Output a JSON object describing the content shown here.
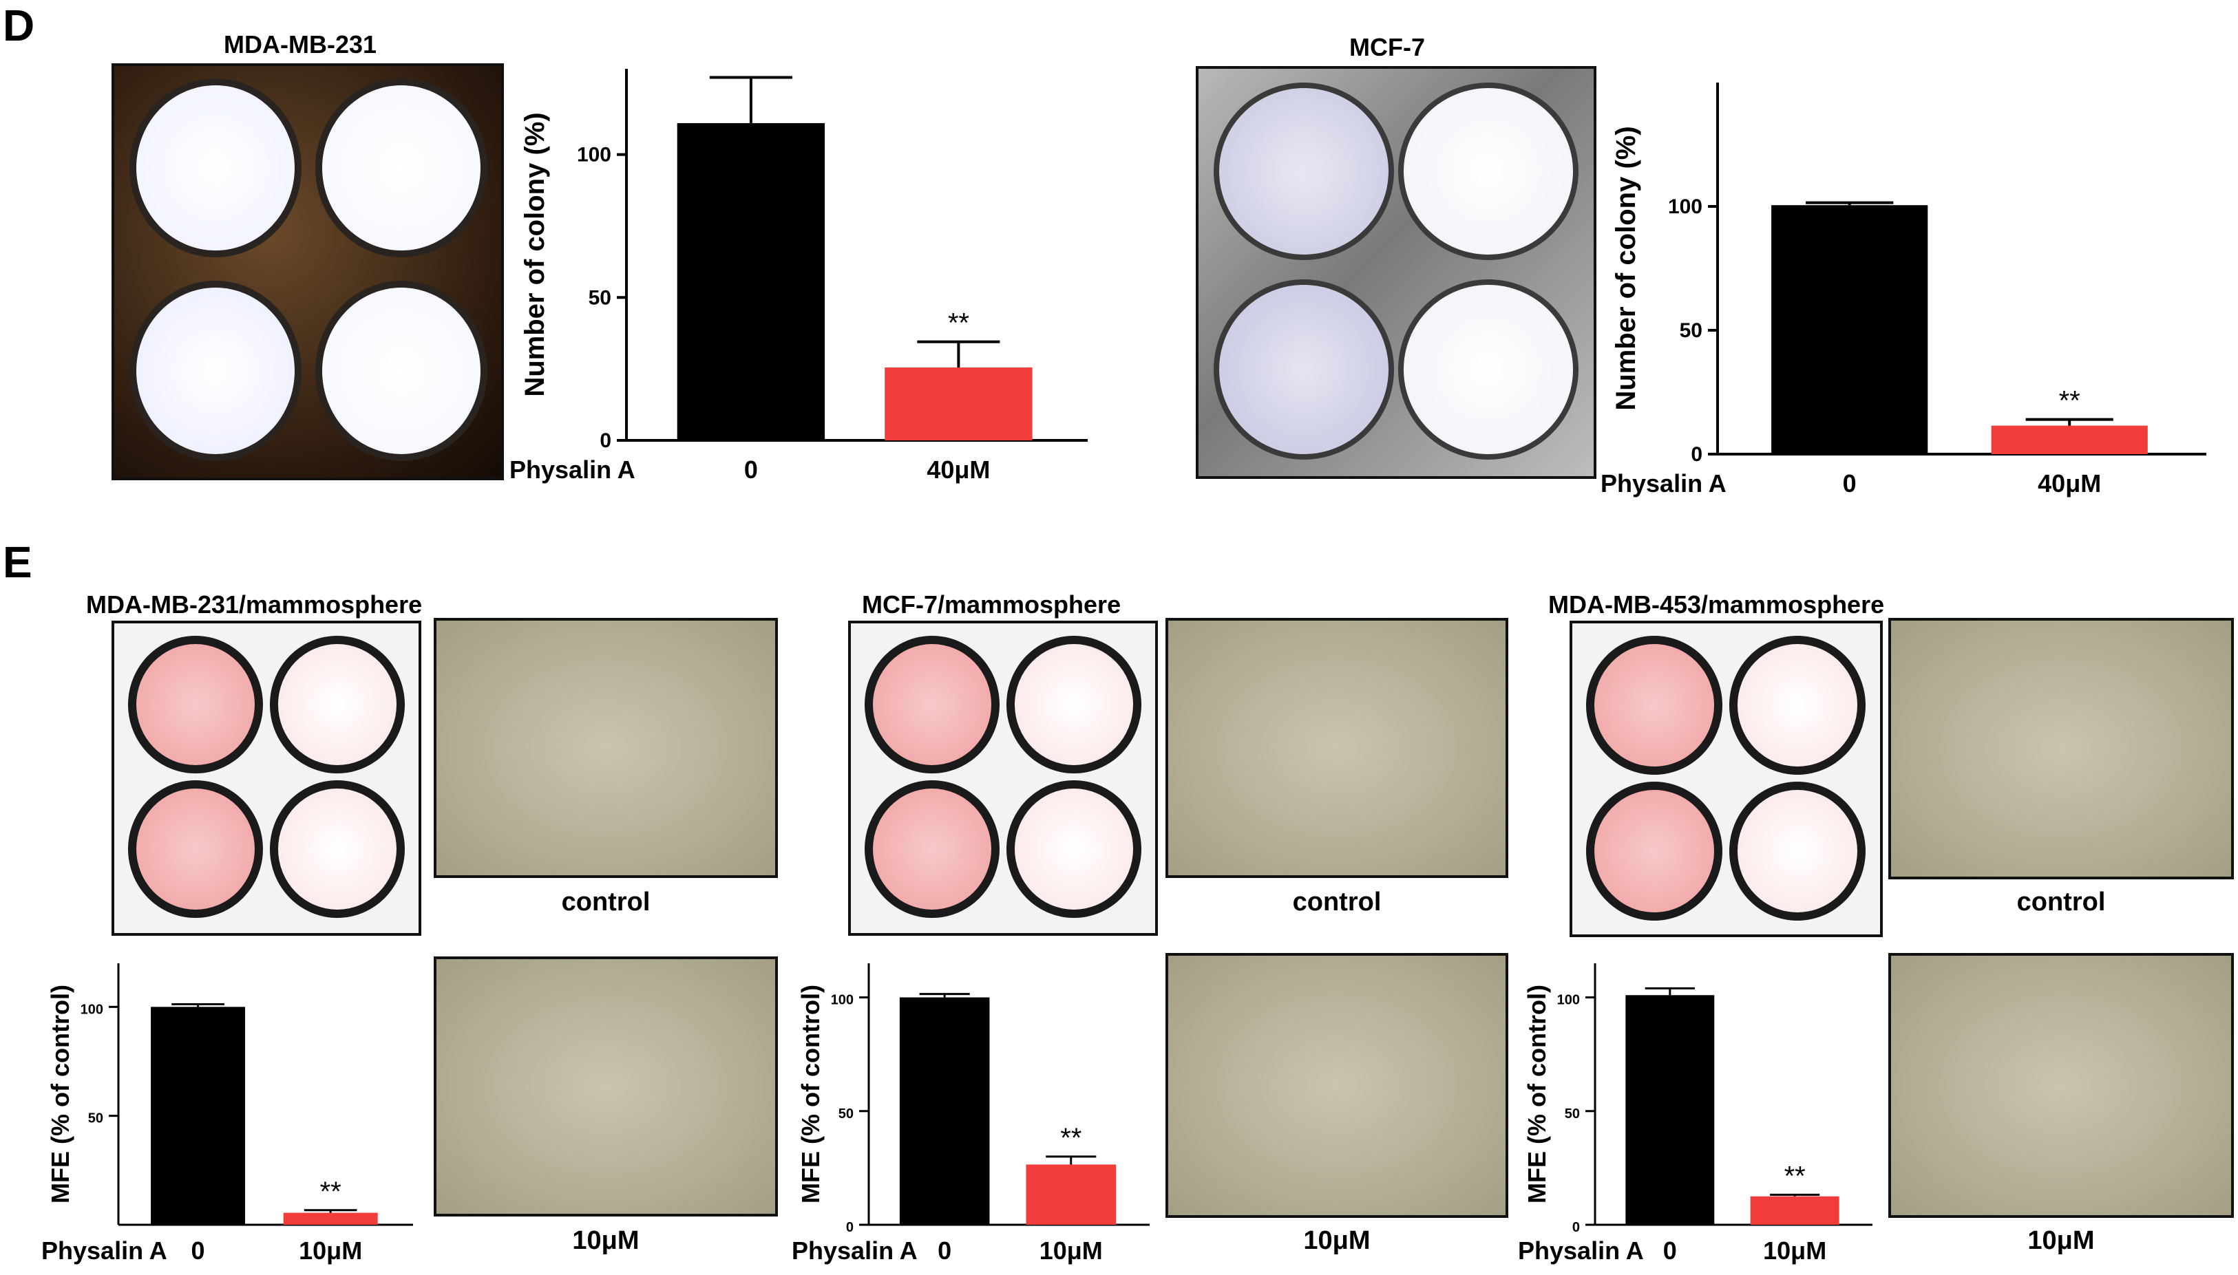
{
  "panels": {
    "D": {
      "letter": "D",
      "left": {
        "plate_title": "MDA-MB-231"
      },
      "right": {
        "plate_title": "MCF-7"
      }
    },
    "E": {
      "letter": "E",
      "groups": [
        {
          "title": "MDA-MB-231/mammosphere",
          "control_caption": "control",
          "treated_caption": "10μM"
        },
        {
          "title": "MCF-7/mammosphere",
          "control_caption": "control",
          "treated_caption": "10μM"
        },
        {
          "title": "MDA-MB-453/mammosphere",
          "control_caption": "control",
          "treated_caption": "10μM"
        }
      ]
    }
  },
  "colors": {
    "control_bar": "#000000",
    "treated_bar": "#f23b3b"
  },
  "chart_data": [
    {
      "id": "D-MDA-MB-231",
      "type": "bar",
      "ylabel": "Number of colony (%)",
      "row_label": "Physalin A",
      "categories": [
        "0",
        "40μM"
      ],
      "values": [
        111,
        25.5
      ],
      "errors": [
        16,
        9
      ],
      "significance": [
        "",
        "**"
      ],
      "yticks": [
        "0",
        "50",
        "100"
      ],
      "ylim": [
        0,
        130
      ]
    },
    {
      "id": "D-MCF-7",
      "type": "bar",
      "ylabel": "Number of colony (%)",
      "row_label": "Physalin A",
      "categories": [
        "0",
        "40μM"
      ],
      "values": [
        100.5,
        11.5
      ],
      "errors": [
        1,
        2.5
      ],
      "significance": [
        "",
        "**"
      ],
      "yticks": [
        "0",
        "50",
        "100"
      ],
      "ylim": [
        0,
        150
      ]
    },
    {
      "id": "E-MDA-MB-231",
      "type": "bar",
      "ylabel": "MFE (% of control)",
      "row_label": "Physalin A",
      "categories": [
        "0",
        "10μM"
      ],
      "values": [
        100,
        5.5
      ],
      "errors": [
        1.2,
        1.2
      ],
      "significance": [
        "",
        "**"
      ],
      "yticks": [
        "50",
        "100"
      ],
      "ylim": [
        0,
        120
      ]
    },
    {
      "id": "E-MCF-7",
      "type": "bar",
      "ylabel": "MFE (% of control)",
      "row_label": "Physalin A",
      "categories": [
        "0",
        "10μM"
      ],
      "values": [
        100,
        26.5
      ],
      "errors": [
        1.5,
        3.5
      ],
      "significance": [
        "",
        "**"
      ],
      "yticks": [
        "0",
        "50",
        "100"
      ],
      "ylim": [
        0,
        115
      ]
    },
    {
      "id": "E-MDA-MB-453",
      "type": "bar",
      "ylabel": "MFE (% of control)",
      "row_label": "Physalin A",
      "categories": [
        "0",
        "10μM"
      ],
      "values": [
        101,
        12.5
      ],
      "errors": [
        3,
        0.7
      ],
      "significance": [
        "",
        "**"
      ],
      "yticks": [
        "0",
        "50",
        "100"
      ],
      "ylim": [
        0,
        115
      ]
    }
  ]
}
